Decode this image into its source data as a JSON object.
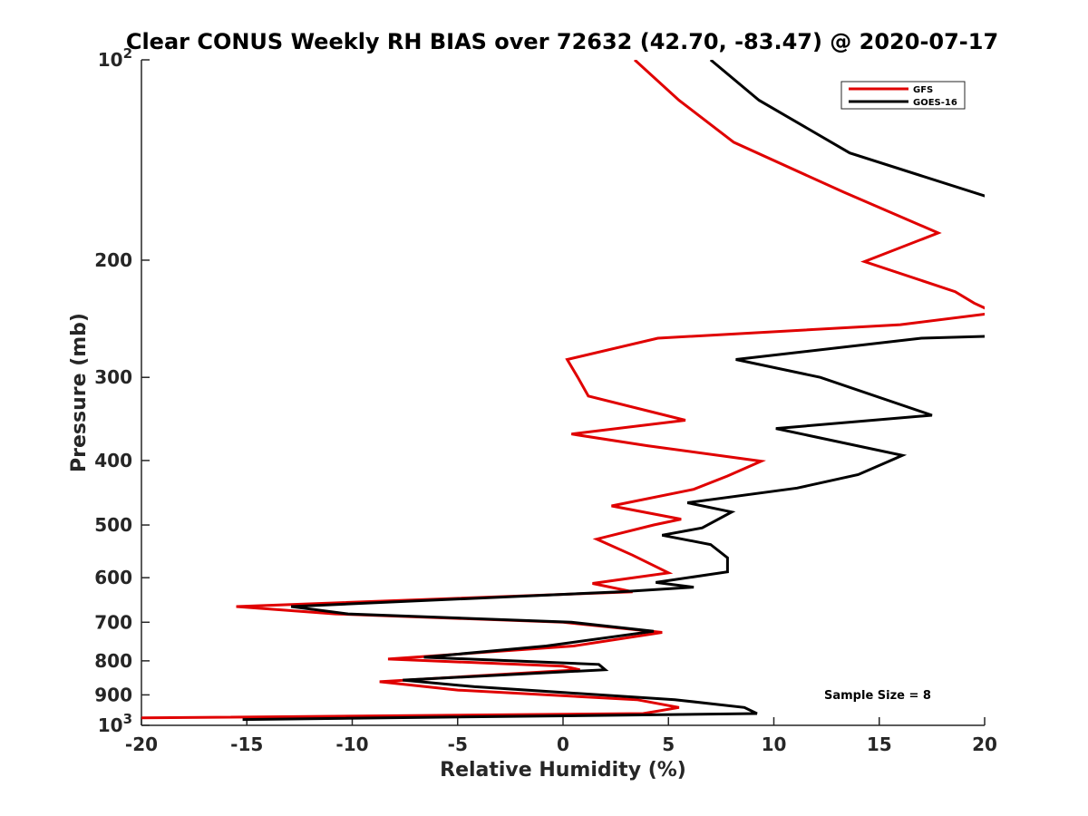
{
  "chart_data": {
    "type": "line",
    "title": "Clear CONUS Weekly RH BIAS over 72632 (42.70, -83.47) @ 2020-07-17",
    "xlabel": "Relative Humidity (%)",
    "ylabel": "Pressure (mb)",
    "xlim": [
      -20,
      20
    ],
    "ylim": [
      100,
      1000
    ],
    "y_scale": "log",
    "y_reversed": true,
    "grid": false,
    "legend_position": "top-right",
    "annotation": "Sample Size = 8",
    "x_ticks": [
      "-20",
      "-15",
      "-10",
      "-5",
      "0",
      "5",
      "10",
      "15",
      "20"
    ],
    "y_ticks": [
      {
        "value": 100,
        "base": "10",
        "exp": "2"
      },
      {
        "value": 200,
        "label": "200"
      },
      {
        "value": 300,
        "label": "300"
      },
      {
        "value": 400,
        "label": "400"
      },
      {
        "value": 500,
        "label": "500"
      },
      {
        "value": 600,
        "label": "600"
      },
      {
        "value": 700,
        "label": "700"
      },
      {
        "value": 800,
        "label": "800"
      },
      {
        "value": 900,
        "label": "900"
      },
      {
        "value": 1000,
        "base": "10",
        "exp": "3"
      }
    ],
    "series": [
      {
        "name": "GFS",
        "color": "#e00000",
        "points": [
          [
            3.4,
            100
          ],
          [
            5.5,
            115
          ],
          [
            8.1,
            133
          ],
          [
            13.3,
            158
          ],
          [
            17.8,
            182
          ],
          [
            14.3,
            201
          ],
          [
            18.6,
            223
          ],
          [
            19.5,
            232
          ],
          [
            20.5,
            240
          ],
          [
            16.0,
            250
          ],
          [
            4.5,
            262
          ],
          [
            0.2,
            282
          ],
          [
            0.7,
            300
          ],
          [
            1.2,
            320
          ],
          [
            5.8,
            348
          ],
          [
            0.4,
            365
          ],
          [
            4.0,
            380
          ],
          [
            9.4,
            401
          ],
          [
            7.8,
            422
          ],
          [
            6.2,
            442
          ],
          [
            2.3,
            468
          ],
          [
            5.6,
            490
          ],
          [
            4.3,
            500
          ],
          [
            1.6,
            525
          ],
          [
            3.3,
            555
          ],
          [
            5.0,
            590
          ],
          [
            1.4,
            612
          ],
          [
            3.3,
            630
          ],
          [
            -15.5,
            663
          ],
          [
            -10.8,
            680
          ],
          [
            0.0,
            700
          ],
          [
            4.7,
            725
          ],
          [
            0.5,
            760
          ],
          [
            -8.3,
            795
          ],
          [
            0.0,
            815
          ],
          [
            0.8,
            825
          ],
          [
            -8.7,
            860
          ],
          [
            -5.0,
            885
          ],
          [
            3.5,
            915
          ],
          [
            5.5,
            940
          ],
          [
            3.8,
            960
          ],
          [
            -20.5,
            975
          ]
        ]
      },
      {
        "name": "GOES-16",
        "color": "#000000",
        "points": [
          [
            7.0,
            100
          ],
          [
            9.3,
            115
          ],
          [
            13.6,
            138
          ],
          [
            20.5,
            162
          ],
          [
            20.5,
            260
          ],
          [
            17.0,
            262
          ],
          [
            8.2,
            282
          ],
          [
            12.2,
            300
          ],
          [
            17.5,
            342
          ],
          [
            10.1,
            358
          ],
          [
            16.1,
            393
          ],
          [
            14.0,
            420
          ],
          [
            11.1,
            440
          ],
          [
            5.9,
            463
          ],
          [
            8.0,
            478
          ],
          [
            6.6,
            505
          ],
          [
            4.7,
            518
          ],
          [
            7.0,
            535
          ],
          [
            7.8,
            560
          ],
          [
            7.8,
            588
          ],
          [
            4.4,
            610
          ],
          [
            6.2,
            620
          ],
          [
            2.7,
            630
          ],
          [
            -12.9,
            663
          ],
          [
            -10.2,
            680
          ],
          [
            0.4,
            700
          ],
          [
            4.3,
            722
          ],
          [
            -0.8,
            760
          ],
          [
            -6.6,
            790
          ],
          [
            1.7,
            810
          ],
          [
            2.0,
            825
          ],
          [
            -7.6,
            855
          ],
          [
            -4.2,
            875
          ],
          [
            5.3,
            915
          ],
          [
            8.6,
            940
          ],
          [
            9.2,
            960
          ],
          [
            -15.2,
            980
          ]
        ]
      }
    ]
  }
}
